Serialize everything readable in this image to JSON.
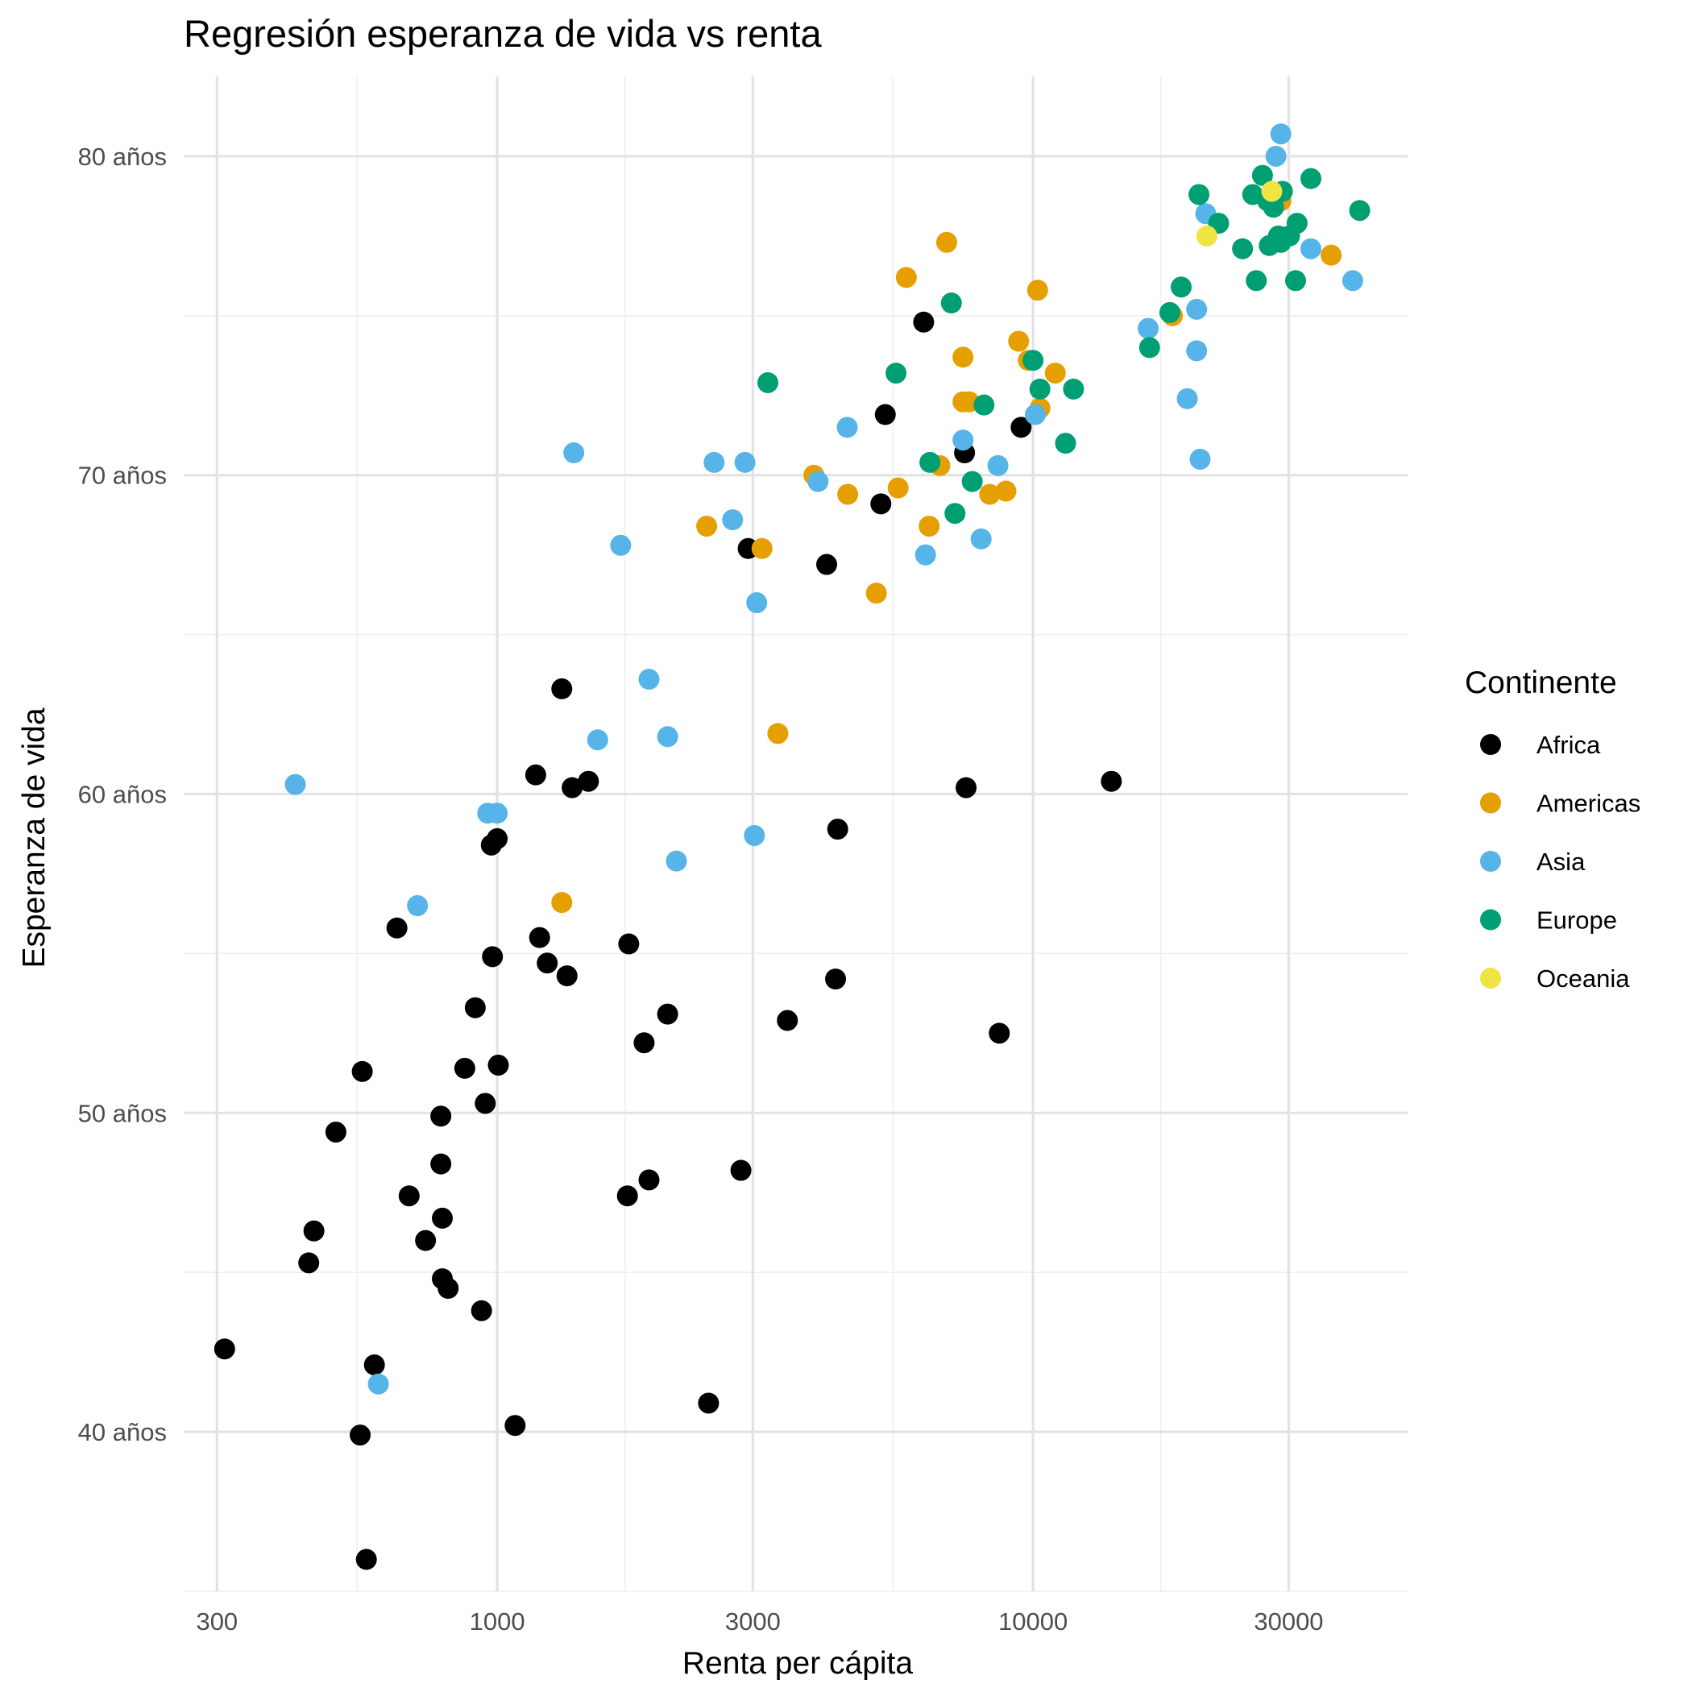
{
  "chart_data": {
    "type": "scatter",
    "title": "Regresión esperanza de vida vs renta",
    "xlabel": "Renta per cápita",
    "ylabel": "Esperanza de vida",
    "x_scale": "log10",
    "xlim": [
      260,
      50000
    ],
    "ylim": [
      35,
      82.5
    ],
    "x_ticks": [
      300,
      1000,
      3000,
      10000,
      30000
    ],
    "x_tick_labels": [
      "300",
      "1000",
      "3000",
      "10000",
      "30000"
    ],
    "y_ticks": [
      40,
      50,
      60,
      70,
      80
    ],
    "y_tick_labels": [
      "40 años",
      "50 años",
      "60 años",
      "70 años",
      "80 años"
    ],
    "grid": true,
    "legend": {
      "title": "Continente",
      "position": "right"
    },
    "series": [
      {
        "name": "Africa",
        "color": "#000000",
        "points": [
          [
            310,
            42.6
          ],
          [
            445,
            45.3
          ],
          [
            455,
            46.3
          ],
          [
            500,
            49.4
          ],
          [
            555,
            39.9
          ],
          [
            560,
            51.3
          ],
          [
            570,
            36.0
          ],
          [
            590,
            42.1
          ],
          [
            650,
            55.8
          ],
          [
            685,
            47.4
          ],
          [
            735,
            46.0
          ],
          [
            785,
            49.9
          ],
          [
            785,
            48.4
          ],
          [
            790,
            46.7
          ],
          [
            790,
            44.8
          ],
          [
            810,
            44.5
          ],
          [
            870,
            51.4
          ],
          [
            910,
            53.3
          ],
          [
            935,
            43.8
          ],
          [
            950,
            50.3
          ],
          [
            975,
            58.4
          ],
          [
            980,
            54.9
          ],
          [
            1000,
            58.6
          ],
          [
            1005,
            51.5
          ],
          [
            1080,
            40.2
          ],
          [
            1180,
            60.6
          ],
          [
            1200,
            55.5
          ],
          [
            1240,
            54.7
          ],
          [
            1320,
            63.3
          ],
          [
            1350,
            54.3
          ],
          [
            1380,
            60.2
          ],
          [
            1480,
            60.4
          ],
          [
            1750,
            47.4
          ],
          [
            1760,
            55.3
          ],
          [
            1880,
            52.2
          ],
          [
            1920,
            47.9
          ],
          [
            2080,
            53.1
          ],
          [
            2480,
            40.9
          ],
          [
            2850,
            48.2
          ],
          [
            2940,
            67.7
          ],
          [
            3480,
            52.9
          ],
          [
            4120,
            67.2
          ],
          [
            4280,
            54.2
          ],
          [
            4320,
            58.9
          ],
          [
            5200,
            69.1
          ],
          [
            5300,
            71.9
          ],
          [
            6250,
            74.8
          ],
          [
            7450,
            70.7
          ],
          [
            7500,
            60.2
          ],
          [
            8650,
            52.5
          ],
          [
            9500,
            71.5
          ],
          [
            14000,
            60.4
          ]
        ]
      },
      {
        "name": "Americas",
        "color": "#E69F00",
        "points": [
          [
            1320,
            56.6
          ],
          [
            2460,
            68.4
          ],
          [
            3120,
            67.7
          ],
          [
            3340,
            61.9
          ],
          [
            3900,
            70.0
          ],
          [
            4510,
            69.4
          ],
          [
            5100,
            66.3
          ],
          [
            5600,
            69.6
          ],
          [
            5800,
            76.2
          ],
          [
            6400,
            68.4
          ],
          [
            6700,
            70.3
          ],
          [
            6900,
            77.3
          ],
          [
            7400,
            73.7
          ],
          [
            7400,
            72.3
          ],
          [
            7600,
            72.3
          ],
          [
            8300,
            69.4
          ],
          [
            8900,
            69.5
          ],
          [
            9400,
            74.2
          ],
          [
            9800,
            73.6
          ],
          [
            10200,
            75.8
          ],
          [
            10300,
            72.1
          ],
          [
            11000,
            73.2
          ],
          [
            18200,
            75.0
          ],
          [
            29000,
            78.6
          ],
          [
            36000,
            76.9
          ]
        ]
      },
      {
        "name": "Asia",
        "color": "#56B4E9",
        "points": [
          [
            420,
            60.3
          ],
          [
            710,
            56.5
          ],
          [
            600,
            41.5
          ],
          [
            960,
            59.4
          ],
          [
            1000,
            59.4
          ],
          [
            1390,
            70.7
          ],
          [
            1540,
            61.7
          ],
          [
            1700,
            67.8
          ],
          [
            1920,
            63.6
          ],
          [
            2080,
            61.8
          ],
          [
            2160,
            57.9
          ],
          [
            2540,
            70.4
          ],
          [
            2750,
            68.6
          ],
          [
            2900,
            70.4
          ],
          [
            3020,
            58.7
          ],
          [
            3050,
            66.0
          ],
          [
            3970,
            69.8
          ],
          [
            4500,
            71.5
          ],
          [
            6300,
            67.5
          ],
          [
            7400,
            71.1
          ],
          [
            8000,
            68.0
          ],
          [
            8600,
            70.3
          ],
          [
            10100,
            71.9
          ],
          [
            16400,
            74.6
          ],
          [
            19400,
            72.4
          ],
          [
            20200,
            73.9
          ],
          [
            20200,
            75.2
          ],
          [
            20500,
            70.5
          ],
          [
            21000,
            78.2
          ],
          [
            28400,
            80.0
          ],
          [
            29000,
            80.7
          ],
          [
            33000,
            77.1
          ],
          [
            39500,
            76.1
          ]
        ]
      },
      {
        "name": "Europe",
        "color": "#009E73",
        "points": [
          [
            3200,
            72.9
          ],
          [
            5550,
            73.2
          ],
          [
            6420,
            70.4
          ],
          [
            7040,
            75.4
          ],
          [
            7150,
            68.8
          ],
          [
            7700,
            69.8
          ],
          [
            8100,
            72.2
          ],
          [
            10000,
            73.6
          ],
          [
            10300,
            72.7
          ],
          [
            11500,
            71.0
          ],
          [
            11900,
            72.7
          ],
          [
            16500,
            74.0
          ],
          [
            18000,
            75.1
          ],
          [
            18900,
            75.9
          ],
          [
            20400,
            78.8
          ],
          [
            22200,
            77.9
          ],
          [
            24600,
            77.1
          ],
          [
            25700,
            78.8
          ],
          [
            26100,
            76.1
          ],
          [
            26800,
            79.4
          ],
          [
            27400,
            78.6
          ],
          [
            27600,
            77.2
          ],
          [
            28100,
            78.4
          ],
          [
            28700,
            77.5
          ],
          [
            29000,
            77.3
          ],
          [
            29200,
            78.9
          ],
          [
            30100,
            77.5
          ],
          [
            30900,
            76.1
          ],
          [
            31100,
            77.9
          ],
          [
            33000,
            79.3
          ],
          [
            40700,
            78.3
          ]
        ]
      },
      {
        "name": "Oceania",
        "color": "#F0E442",
        "points": [
          [
            21100,
            77.5
          ],
          [
            27900,
            78.9
          ]
        ]
      }
    ]
  }
}
